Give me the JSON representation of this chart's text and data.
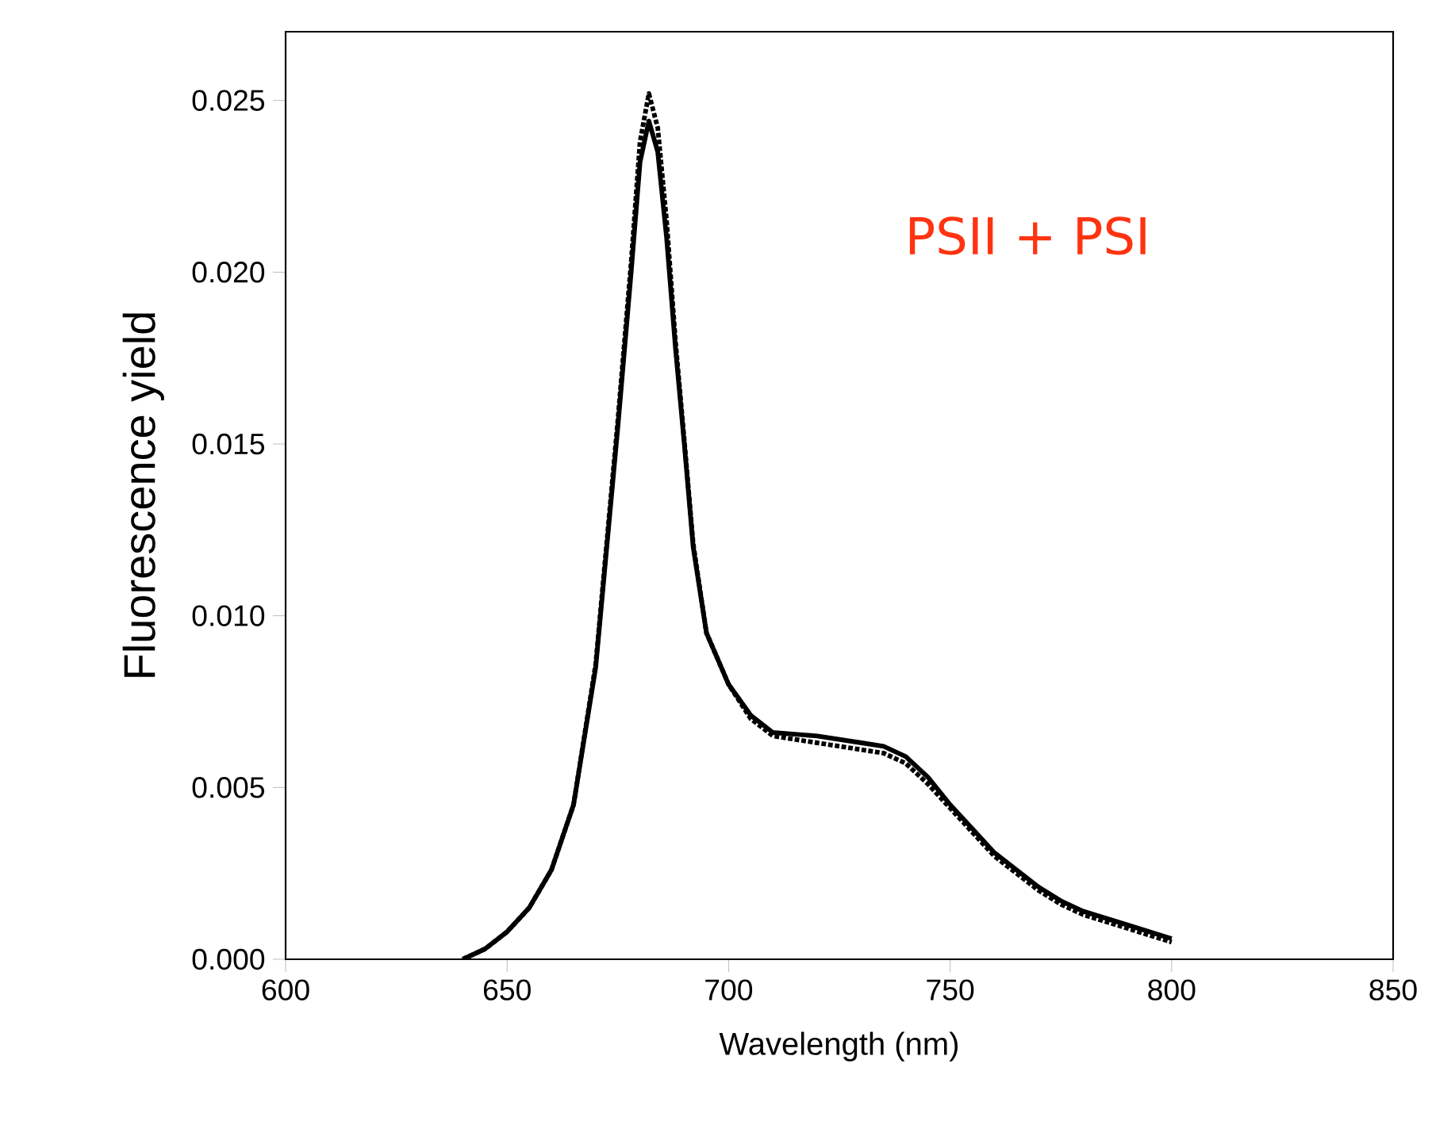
{
  "chart_data": {
    "type": "line",
    "xlabel": "Wavelength (nm)",
    "ylabel": "Fluorescence yield",
    "annotations": [
      "PSII + PSI"
    ],
    "xlim": [
      600,
      850
    ],
    "xticks": [
      600,
      650,
      700,
      750,
      800,
      850
    ],
    "ylim": [
      0,
      0.027
    ],
    "yticks": [
      {
        "value": 0,
        "label": "0.000"
      },
      {
        "value": 0.005,
        "label": "0.005"
      },
      {
        "value": 0.01,
        "label": "0.010"
      },
      {
        "value": 0.015,
        "label": "0.015"
      },
      {
        "value": 0.02,
        "label": "0.020"
      },
      {
        "value": 0.025,
        "label": "0.025"
      }
    ],
    "marker": "none",
    "x": [
      640,
      645,
      650,
      655,
      660,
      665,
      670,
      675,
      678,
      680,
      682,
      684,
      686,
      688,
      690,
      692,
      695,
      700,
      705,
      710,
      720,
      730,
      735,
      740,
      745,
      750,
      755,
      760,
      765,
      770,
      775,
      780,
      790,
      800
    ],
    "series": [
      {
        "color": "#000000",
        "line_style": "solid",
        "values": [
          0,
          0.0003,
          0.0008,
          0.0015,
          0.0026,
          0.0045,
          0.0085,
          0.0155,
          0.02,
          0.0232,
          0.0244,
          0.0235,
          0.021,
          0.0178,
          0.015,
          0.012,
          0.0095,
          0.008,
          0.0071,
          0.0066,
          0.0065,
          0.0063,
          0.0062,
          0.0059,
          0.0053,
          0.0045,
          0.0038,
          0.0031,
          0.0026,
          0.0021,
          0.0017,
          0.0014,
          0.001,
          0.0006
        ]
      },
      {
        "color": "#000000",
        "line_style": "dotted",
        "values": [
          0,
          0.0003,
          0.0008,
          0.0015,
          0.0026,
          0.0045,
          0.0086,
          0.0157,
          0.0203,
          0.0238,
          0.0252,
          0.0242,
          0.0215,
          0.018,
          0.0151,
          0.0121,
          0.0095,
          0.008,
          0.007,
          0.0065,
          0.0063,
          0.0061,
          0.006,
          0.0057,
          0.0051,
          0.0044,
          0.0037,
          0.003,
          0.0025,
          0.002,
          0.0016,
          0.0013,
          0.0009,
          0.0005
        ]
      }
    ]
  }
}
